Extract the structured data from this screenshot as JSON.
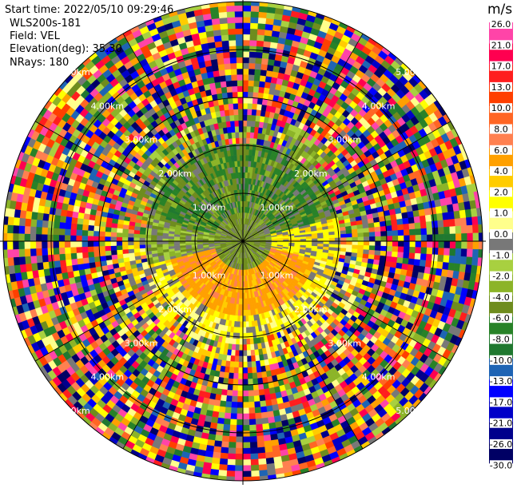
{
  "header": {
    "start_time": "Start time: 2022/05/10 09:29:46",
    "instrument": "WLS200s-181",
    "field": "Field: VEL",
    "elevation": "Elevation(deg): 35.30",
    "nrays": "NRays: 180"
  },
  "colorbar": {
    "unit": "m/s",
    "levels": [
      "26.0",
      "21.0",
      "17.0",
      "13.0",
      "10.0",
      "8.0",
      "6.0",
      "4.0",
      "2.0",
      "1.0",
      "0.0",
      "-1.0",
      "-2.0",
      "-4.0",
      "-6.0",
      "-8.0",
      "-10.0",
      "-13.0",
      "-17.0",
      "-21.0",
      "-26.0",
      "-30.0"
    ],
    "colors": [
      "#ff44a8",
      "#ff0050",
      "#ff1e1e",
      "#ff3f00",
      "#ff6624",
      "#ff8050",
      "#ffa000",
      "#ffcc00",
      "#ffff00",
      "#ffff8c",
      "#787878",
      "#a8d040",
      "#8cb428",
      "#6e8c1e",
      "#288228",
      "#207830",
      "#1e64b4",
      "#0000ff",
      "#0000c8",
      "#00008c",
      "#000064"
    ]
  },
  "chart_data": {
    "type": "polar-radar-ppi",
    "field": "VEL",
    "unit": "m/s",
    "nrays": 180,
    "elevation_deg": 35.3,
    "range_rings_km": [
      1.0,
      2.0,
      3.0,
      4.0,
      5.0
    ],
    "range_labels": [
      "1.00km",
      "2.00km",
      "3.00km",
      "4.00km",
      "5.00km"
    ],
    "max_range_km": 5.0,
    "spokes_deg": [
      0,
      30,
      60,
      90,
      120,
      150,
      180,
      210,
      240,
      270,
      300,
      330
    ],
    "velocity_zones": [
      {
        "region": "inner core",
        "range_km": [
          0.0,
          0.6
        ],
        "typical_velocity_ms": -2.0
      },
      {
        "region": "north sector",
        "range_km": [
          0.6,
          2.0
        ],
        "typical_velocity_ms": -6.0
      },
      {
        "region": "south sector",
        "range_km": [
          0.6,
          1.6
        ],
        "typical_velocity_ms": 6.0
      },
      {
        "region": "south outer",
        "range_km": [
          1.6,
          2.4
        ],
        "typical_velocity_ms": 2.0
      },
      {
        "region": "noise ring",
        "range_km": [
          2.6,
          5.0
        ],
        "typical_velocity_ms": "random"
      }
    ]
  }
}
